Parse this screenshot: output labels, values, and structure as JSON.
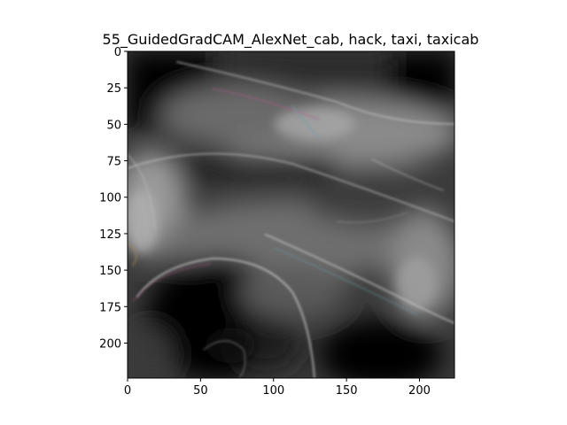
{
  "figure": {
    "title": "55_GuidedGradCAM_AlexNet_cab, hack, taxi, taxicab"
  },
  "image_panel": {
    "type": "heatmap",
    "description_color": "#000000",
    "xlim": [
      0,
      224
    ],
    "ylim": [
      224,
      0
    ],
    "y_axis_inverted": true,
    "x_ticks": [
      "0",
      "50",
      "100",
      "150",
      "200"
    ],
    "y_ticks": [
      "0",
      "25",
      "50",
      "75",
      "100",
      "125",
      "150",
      "175",
      "200"
    ],
    "palette": {
      "background": "#000000",
      "mid_gray": "#5a5a5a",
      "light_gray": "#9a9a9a",
      "edge_tint_magenta": "#b05a8a",
      "edge_tint_cyan": "#6aa0a8"
    }
  }
}
